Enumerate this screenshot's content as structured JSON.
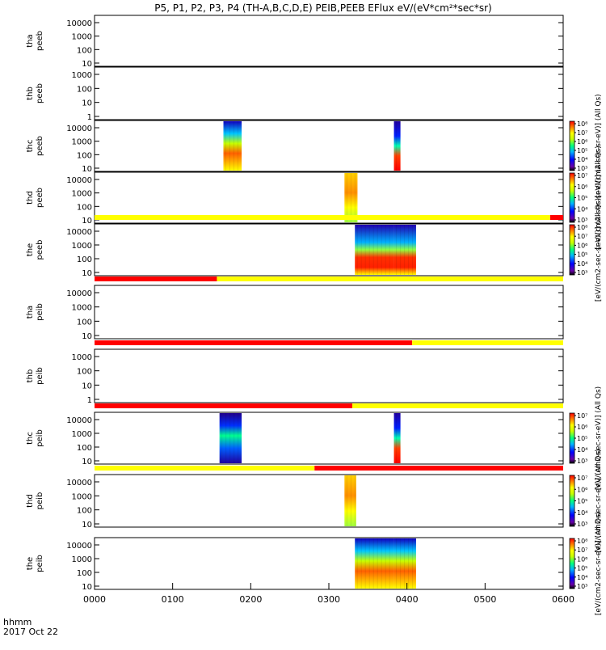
{
  "title": "P5, P1, P2, P3, P4 (TH-A,B,C,D,E) PEIB,PEEB EFlux eV/(eV*cm²*sec*sr)",
  "footer": {
    "xlabel": "hhmm",
    "date": "2017 Oct 22"
  },
  "colors": {
    "red": "#ff0000",
    "yellow": "#ffff00",
    "black": "#000000"
  },
  "chart_data": {
    "type": "heatmap",
    "x_axis": {
      "range": [
        "0000",
        "0600"
      ],
      "ticks": [
        "0000",
        "0100",
        "0200",
        "0300",
        "0400",
        "0500",
        "0600"
      ]
    },
    "panels": [
      {
        "id": "tha-peeb",
        "label": [
          "tha",
          "peeb"
        ],
        "yscale": "log",
        "yticks": [
          "10",
          "100",
          "1000",
          "10000"
        ],
        "blocks": []
      },
      {
        "id": "thb-peeb",
        "label": [
          "thb",
          "peeb"
        ],
        "yscale": "log",
        "yticks": [
          "1",
          "10",
          "100",
          "1000"
        ],
        "blocks": []
      },
      {
        "id": "thc-peeb",
        "label": [
          "thc",
          "peeb"
        ],
        "yscale": "log",
        "yticks": [
          "10",
          "100",
          "1000",
          "10000"
        ],
        "blocks": [
          {
            "start": "0139",
            "end": "0153",
            "style": "warm"
          },
          {
            "start": "0350",
            "end": "0355",
            "style": "strip"
          }
        ],
        "colorbar": {
          "ticks": [
            "10³",
            "10⁴",
            "10⁵",
            "10⁶",
            "10⁷",
            "10⁸"
          ],
          "label": "[eV/(cm2-sec-sr-eV)] (All Qs)"
        }
      },
      {
        "id": "thd-peeb",
        "label": [
          "thd",
          "peeb"
        ],
        "yscale": "log",
        "yticks": [
          "10",
          "100",
          "1000",
          "10000"
        ],
        "blocks": [
          {
            "start": "0312",
            "end": "0322",
            "style": "hot"
          }
        ],
        "colorbar": {
          "ticks": [
            "10³",
            "10⁴",
            "10⁵",
            "10⁶",
            "10⁷"
          ],
          "label": "[eV/(cm2-sec-sr-eV)] (All Qs)"
        }
      },
      {
        "id": "the-peeb",
        "label": [
          "the",
          "peeb"
        ],
        "yscale": "log",
        "yticks": [
          "10",
          "100",
          "1000",
          "10000"
        ],
        "blocks": [
          {
            "start": "0320",
            "end": "0350",
            "style": "split"
          },
          {
            "start": "0350",
            "end": "0407",
            "style": "split"
          }
        ],
        "colorbar": {
          "ticks": [
            "10³",
            "10⁴",
            "10⁵",
            "10⁶",
            "10⁷",
            "10⁸"
          ],
          "label": "[eV/(cm2-sec-sr-eV)] (All Qs)"
        },
        "status_bar": {
          "segments": [
            {
              "start": "0000",
              "end": "0550",
              "color": "yellow"
            },
            {
              "start": "0550",
              "end": "0600",
              "color": "red"
            }
          ]
        }
      },
      {
        "id": "tha-peib",
        "label": [
          "tha",
          "peib"
        ],
        "yscale": "log",
        "yticks": [
          "10",
          "100",
          "1000",
          "10000"
        ],
        "blocks": [],
        "status_bar": {
          "segments": [
            {
              "start": "0000",
              "end": "0134",
              "color": "red"
            },
            {
              "start": "0134",
              "end": "0600",
              "color": "yellow"
            }
          ]
        }
      },
      {
        "id": "thb-peib",
        "label": [
          "thb",
          "peib"
        ],
        "yscale": "log",
        "yticks": [
          "1",
          "10",
          "100",
          "1000"
        ],
        "blocks": [],
        "status_bar": {
          "segments": [
            {
              "start": "0000",
              "end": "0404",
              "color": "red"
            },
            {
              "start": "0404",
              "end": "0600",
              "color": "yellow"
            }
          ]
        }
      },
      {
        "id": "thc-peib",
        "label": [
          "thc",
          "peib"
        ],
        "yscale": "log",
        "yticks": [
          "10",
          "100",
          "1000",
          "10000"
        ],
        "blocks": [
          {
            "start": "0136",
            "end": "0153",
            "style": "cool"
          },
          {
            "start": "0350",
            "end": "0355",
            "style": "strip"
          }
        ],
        "colorbar": {
          "ticks": [
            "10³",
            "10⁴",
            "10⁵",
            "10⁶",
            "10⁷"
          ],
          "label": "[eV/(cm2-sec-sr-eV)] (All Qs)"
        },
        "status_bar": {
          "segments": [
            {
              "start": "0000",
              "end": "0318",
              "color": "red"
            },
            {
              "start": "0318",
              "end": "0600",
              "color": "yellow"
            }
          ]
        }
      },
      {
        "id": "thd-peib",
        "label": [
          "thd",
          "peib"
        ],
        "yscale": "log",
        "yticks": [
          "10",
          "100",
          "1000",
          "10000"
        ],
        "blocks": [
          {
            "start": "0312",
            "end": "0321",
            "style": "hot"
          }
        ],
        "colorbar": {
          "ticks": [
            "10³",
            "10⁴",
            "10⁵",
            "10⁶",
            "10⁷"
          ],
          "label": "[eV/(cm2-sec-sr-eV)] (All Qs)"
        },
        "status_bar": {
          "segments": [
            {
              "start": "0000",
              "end": "0249",
              "color": "yellow"
            },
            {
              "start": "0249",
              "end": "0600",
              "color": "red"
            }
          ]
        }
      },
      {
        "id": "the-peib",
        "label": [
          "the",
          "peib"
        ],
        "yscale": "log",
        "yticks": [
          "10",
          "100",
          "1000",
          "10000"
        ],
        "blocks": [
          {
            "start": "0320",
            "end": "0350",
            "style": "warm"
          },
          {
            "start": "0350",
            "end": "0407",
            "style": "warm"
          }
        ],
        "colorbar": {
          "ticks": [
            "10³",
            "10⁴",
            "10⁵",
            "10⁶",
            "10⁷",
            "10⁸"
          ],
          "label": "[eV/(cm2-sec-sr-eV)] (All Qs)"
        }
      }
    ]
  }
}
